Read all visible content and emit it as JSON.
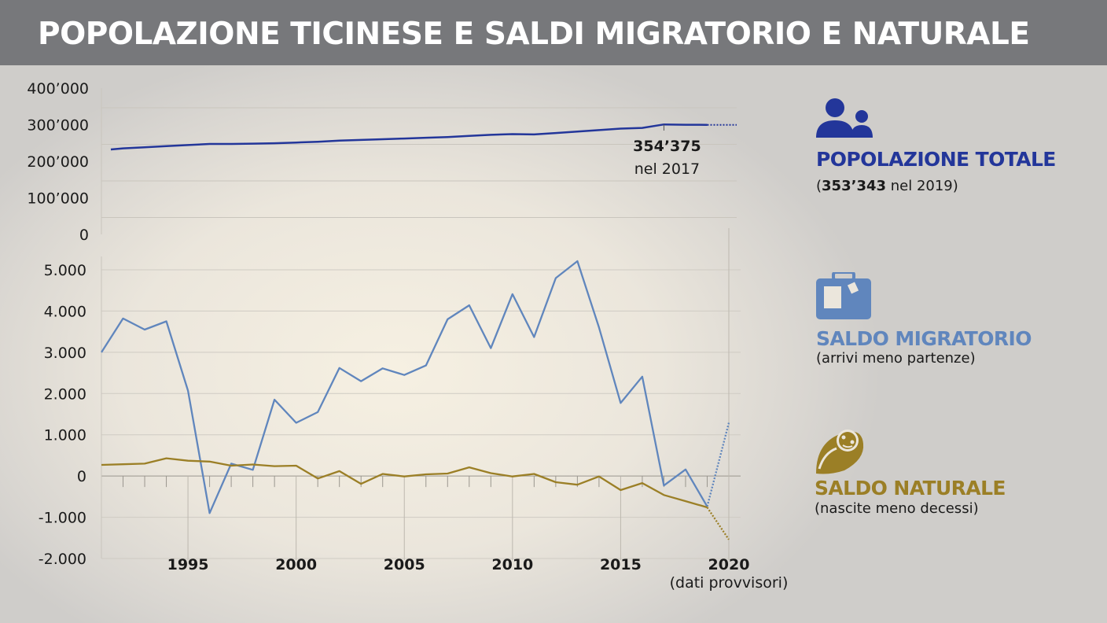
{
  "header": {
    "title": "POPOLAZIONE TICINESE E SALDI MIGRATORIO E NATURALE"
  },
  "colors": {
    "population": "#23369a",
    "migratorio": "#6086bd",
    "naturale": "#9b7f26",
    "header_bg": "#77787b"
  },
  "legend": {
    "population": {
      "icon": "people-icon",
      "title": "POPOLAZIONE TOTALE",
      "sub_open": "(",
      "sub_value": "353’343",
      "sub_rest": " nel 2019)"
    },
    "migratorio": {
      "icon": "suitcase-icon",
      "title": "SALDO MIGRATORIO",
      "sub": "(arrivi meno partenze)"
    },
    "naturale": {
      "icon": "baby-icon",
      "title": "SALDO NATURALE",
      "sub": "(nascite meno decessi)"
    }
  },
  "chart_data": [
    {
      "type": "line",
      "title": "",
      "ylim": [
        0,
        400000
      ],
      "y_ticks": [
        "400’000",
        "300’000",
        "200’000",
        "100’000",
        "0"
      ],
      "xlim": [
        1991,
        2020
      ],
      "grid": true,
      "annotation": {
        "value": "354’375",
        "text": "nel 2017",
        "x": 2017
      },
      "series": [
        {
          "name": "POPOLAZIONE TOTALE",
          "x": [
            1991,
            1992,
            1993,
            1994,
            1995,
            1996,
            1997,
            1998,
            1999,
            2000,
            2001,
            2002,
            2003,
            2004,
            2005,
            2006,
            2007,
            2008,
            2009,
            2010,
            2011,
            2012,
            2013,
            2014,
            2015,
            2016,
            2017,
            2018,
            2019
          ],
          "values": [
            286000,
            289000,
            292000,
            295000,
            298000,
            301000,
            301000,
            302000,
            303000,
            305000,
            307000,
            310000,
            312000,
            314000,
            316000,
            318000,
            320000,
            323000,
            326000,
            328000,
            327000,
            331000,
            335000,
            339000,
            343000,
            345000,
            354375,
            353500,
            353343
          ],
          "provisional": {
            "x": [
              2019,
              2020
            ],
            "values": [
              353343,
              353343
            ]
          }
        }
      ]
    },
    {
      "type": "line",
      "title": "",
      "ylim": [
        -2000,
        5000
      ],
      "y_ticks": [
        "5.000",
        "4.000",
        "3.000",
        "2.000",
        "1.000",
        "0",
        "-1.000",
        "-2.000"
      ],
      "xlim": [
        1991,
        2020
      ],
      "x_ticks": [
        "1995",
        "2000",
        "2005",
        "2010",
        "2015",
        "2020"
      ],
      "x_note": "(dati provvisori)",
      "grid": true,
      "series": [
        {
          "name": "SALDO MIGRATORIO",
          "x": [
            1991,
            1992,
            1993,
            1994,
            1995,
            1996,
            1997,
            1998,
            1999,
            2000,
            2001,
            2002,
            2003,
            2004,
            2005,
            2006,
            2007,
            2008,
            2009,
            2010,
            2011,
            2012,
            2013,
            2014,
            2015,
            2016,
            2017,
            2018,
            2019
          ],
          "values": [
            3000,
            3820,
            3550,
            3750,
            2070,
            -900,
            300,
            150,
            1850,
            1290,
            1550,
            2620,
            2300,
            2610,
            2450,
            2680,
            3800,
            4140,
            3100,
            4410,
            3370,
            4800,
            5210,
            3600,
            1770,
            2410,
            -230,
            160,
            -740
          ],
          "provisional": {
            "x": [
              2019,
              2020
            ],
            "values": [
              -740,
              1290
            ]
          }
        },
        {
          "name": "SALDO NATURALE",
          "x": [
            1991,
            1992,
            1993,
            1994,
            1995,
            1996,
            1997,
            1998,
            1999,
            2000,
            2001,
            2002,
            2003,
            2004,
            2005,
            2006,
            2007,
            2008,
            2009,
            2010,
            2011,
            2012,
            2013,
            2014,
            2015,
            2016,
            2017,
            2018,
            2019
          ],
          "values": [
            270,
            285,
            300,
            430,
            370,
            350,
            250,
            280,
            240,
            250,
            -60,
            120,
            -190,
            50,
            -10,
            40,
            60,
            210,
            70,
            -10,
            50,
            -150,
            -210,
            -10,
            -340,
            -170,
            -460,
            -610,
            -760
          ],
          "provisional": {
            "x": [
              2019,
              2020
            ],
            "values": [
              -760,
              -1540
            ]
          }
        }
      ]
    }
  ]
}
